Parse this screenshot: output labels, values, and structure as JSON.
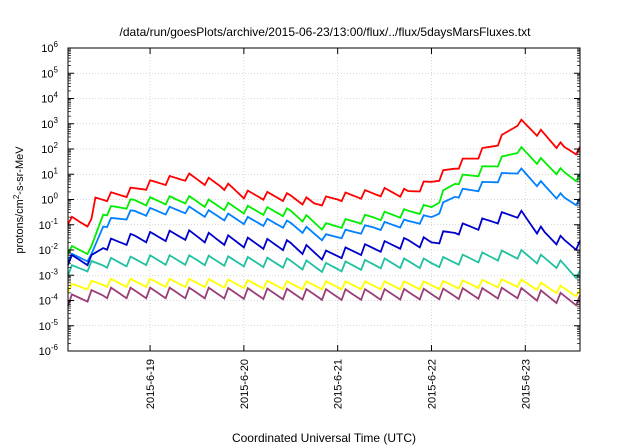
{
  "chart_data": {
    "type": "line",
    "title": "/data/run/goesPlots/archive/2015-06-23/13:00/flux/../flux/5daysMarsFluxes.txt",
    "xlabel": "Coordinated Universal Time (UTC)",
    "ylabel_parts": {
      "before": "protons/cm",
      "sup": "2",
      "after": "-s-sr-MeV"
    },
    "ylabel": "protons/cm2-s-sr-MeV",
    "yscale": "log",
    "ylim_exp": [
      -6,
      6
    ],
    "y_ticks": [
      {
        "base": "10",
        "exp": "6"
      },
      {
        "base": "10",
        "exp": "5"
      },
      {
        "base": "10",
        "exp": "4"
      },
      {
        "base": "10",
        "exp": "3"
      },
      {
        "base": "10",
        "exp": "2"
      },
      {
        "base": "10",
        "exp": "1"
      },
      {
        "base": "10",
        "exp": "0"
      },
      {
        "base": "10",
        "exp": "-1"
      },
      {
        "base": "10",
        "exp": "-2"
      },
      {
        "base": "10",
        "exp": "-3"
      },
      {
        "base": "10",
        "exp": "-4"
      },
      {
        "base": "10",
        "exp": "-5"
      },
      {
        "base": "10",
        "exp": "-6"
      }
    ],
    "xlim": [
      "2015-06-18 03:00",
      "2015-06-23 14:00"
    ],
    "x_ticks": [
      "2015-6-19",
      "2015-6-20",
      "2015-6-21",
      "2015-6-22",
      "2015-6-23"
    ],
    "grid": true,
    "legend": "none",
    "series": [
      {
        "color": "#ff0000",
        "points": [
          [
            "2015-06-18 03:00",
            0.15
          ],
          [
            "2015-06-18 06:00",
            0.13
          ],
          [
            "2015-06-18 09:00",
            0.12
          ],
          [
            "2015-06-18 10:00",
            1.0
          ],
          [
            "2015-06-18 18:00",
            1.8
          ],
          [
            "2015-06-19 00:00",
            4.0
          ],
          [
            "2015-06-19 09:00",
            8.0
          ],
          [
            "2015-06-19 18:00",
            4.0
          ],
          [
            "2015-06-20 00:00",
            1.6
          ],
          [
            "2015-06-20 12:00",
            1.2
          ],
          [
            "2015-06-20 18:00",
            0.7
          ],
          [
            "2015-06-21 00:00",
            1.2
          ],
          [
            "2015-06-21 12:00",
            2.0
          ],
          [
            "2015-06-21 18:00",
            1.8
          ],
          [
            "2015-06-22 00:00",
            5.0
          ],
          [
            "2015-06-22 06:00",
            20.0
          ],
          [
            "2015-06-22 12:00",
            60.0
          ],
          [
            "2015-06-22 18:00",
            250.0
          ],
          [
            "2015-06-22 22:00",
            1200.0
          ],
          [
            "2015-06-23 04:00",
            400.0
          ],
          [
            "2015-06-23 10:00",
            100.0
          ],
          [
            "2015-06-23 14:00",
            85.0
          ]
        ]
      },
      {
        "color": "#00ee00",
        "points": [
          [
            "2015-06-18 03:00",
            0.01
          ],
          [
            "2015-06-18 09:00",
            0.01
          ],
          [
            "2015-06-18 12:00",
            0.3
          ],
          [
            "2015-06-18 20:00",
            0.8
          ],
          [
            "2015-06-19 09:00",
            1.0
          ],
          [
            "2015-06-20 00:00",
            0.4
          ],
          [
            "2015-06-20 12:00",
            0.3
          ],
          [
            "2015-06-20 21:00",
            0.08
          ],
          [
            "2015-06-21 09:00",
            0.2
          ],
          [
            "2015-06-21 18:00",
            0.3
          ],
          [
            "2015-06-22 00:00",
            0.5
          ],
          [
            "2015-06-22 06:00",
            5.0
          ],
          [
            "2015-06-22 12:00",
            12.0
          ],
          [
            "2015-06-22 18:00",
            35.0
          ],
          [
            "2015-06-22 22:00",
            100.0
          ],
          [
            "2015-06-23 05:00",
            25.0
          ],
          [
            "2015-06-23 10:00",
            10.0
          ],
          [
            "2015-06-23 14:00",
            7.0
          ]
        ]
      },
      {
        "color": "#0080ff",
        "points": [
          [
            "2015-06-18 03:00",
            0.005
          ],
          [
            "2015-06-18 09:00",
            0.005
          ],
          [
            "2015-06-18 12:00",
            0.1
          ],
          [
            "2015-06-18 20:00",
            0.3
          ],
          [
            "2015-06-19 09:00",
            0.4
          ],
          [
            "2015-06-20 00:00",
            0.15
          ],
          [
            "2015-06-20 12:00",
            0.1
          ],
          [
            "2015-06-20 21:00",
            0.03
          ],
          [
            "2015-06-21 09:00",
            0.08
          ],
          [
            "2015-06-21 18:00",
            0.12
          ],
          [
            "2015-06-22 00:00",
            0.2
          ],
          [
            "2015-06-22 06:00",
            1.5
          ],
          [
            "2015-06-22 12:00",
            3.0
          ],
          [
            "2015-06-22 18:00",
            8.0
          ],
          [
            "2015-06-22 22:00",
            15.0
          ],
          [
            "2015-06-23 05:00",
            3.0
          ],
          [
            "2015-06-23 10:00",
            1.0
          ],
          [
            "2015-06-23 14:00",
            0.8
          ]
        ]
      },
      {
        "color": "#0000cc",
        "points": [
          [
            "2015-06-18 03:00",
            0.004
          ],
          [
            "2015-06-18 09:00",
            0.004
          ],
          [
            "2015-06-18 12:00",
            0.015
          ],
          [
            "2015-06-18 20:00",
            0.03
          ],
          [
            "2015-06-19 09:00",
            0.04
          ],
          [
            "2015-06-20 00:00",
            0.02
          ],
          [
            "2015-06-20 12:00",
            0.015
          ],
          [
            "2015-06-20 21:00",
            0.006
          ],
          [
            "2015-06-21 09:00",
            0.012
          ],
          [
            "2015-06-21 18:00",
            0.02
          ],
          [
            "2015-06-22 00:00",
            0.02
          ],
          [
            "2015-06-22 06:00",
            0.06
          ],
          [
            "2015-06-22 12:00",
            0.1
          ],
          [
            "2015-06-22 18:00",
            0.2
          ],
          [
            "2015-06-22 22:00",
            0.3
          ],
          [
            "2015-06-23 05:00",
            0.04
          ],
          [
            "2015-06-23 10:00",
            0.02
          ],
          [
            "2015-06-23 14:00",
            0.015
          ]
        ]
      },
      {
        "color": "#20c0a0",
        "points": [
          [
            "2015-06-18 03:00",
            0.0015
          ],
          [
            "2015-06-18 12:00",
            0.003
          ],
          [
            "2015-06-19 00:00",
            0.004
          ],
          [
            "2015-06-19 12:00",
            0.004
          ],
          [
            "2015-06-20 12:00",
            0.003
          ],
          [
            "2015-06-20 21:00",
            0.002
          ],
          [
            "2015-06-21 12:00",
            0.003
          ],
          [
            "2015-06-22 00:00",
            0.003
          ],
          [
            "2015-06-22 12:00",
            0.005
          ],
          [
            "2015-06-22 22:00",
            0.007
          ],
          [
            "2015-06-23 08:00",
            0.003
          ],
          [
            "2015-06-23 14:00",
            0.001
          ]
        ]
      },
      {
        "color": "#ffff00",
        "points": [
          [
            "2015-06-18 03:00",
            0.0003
          ],
          [
            "2015-06-18 12:00",
            0.0005
          ],
          [
            "2015-06-19 12:00",
            0.0005
          ],
          [
            "2015-06-20 12:00",
            0.0004
          ],
          [
            "2015-06-21 00:00",
            0.0004
          ],
          [
            "2015-06-22 00:00",
            0.0004
          ],
          [
            "2015-06-22 22:00",
            0.0005
          ],
          [
            "2015-06-23 14:00",
            0.0002
          ]
        ]
      },
      {
        "color": "#9a3e78",
        "points": [
          [
            "2015-06-18 03:00",
            0.0001
          ],
          [
            "2015-06-18 12:00",
            0.0002
          ],
          [
            "2015-06-19 12:00",
            0.0002
          ],
          [
            "2015-06-20 12:00",
            0.00018
          ],
          [
            "2015-06-21 00:00",
            0.00017
          ],
          [
            "2015-06-22 00:00",
            0.00018
          ],
          [
            "2015-06-22 22:00",
            0.0002
          ],
          [
            "2015-06-23 14:00",
            0.0001
          ]
        ]
      }
    ]
  }
}
